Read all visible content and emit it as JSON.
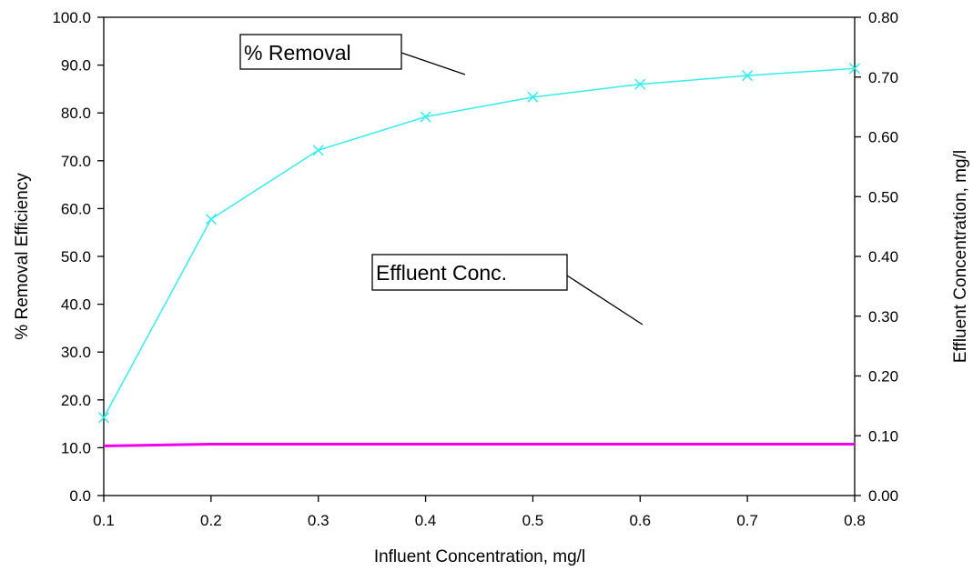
{
  "chart_data": {
    "type": "line",
    "title": "",
    "xlabel": "Influent Concentration, mg/l",
    "ylabel": "% Removal Efficiency",
    "y2label": "Effluent Concentration, mg/l",
    "x": [
      0.1,
      0.2,
      0.3,
      0.4,
      0.5,
      0.6,
      0.7,
      0.8
    ],
    "x_ticks": [
      "0.1",
      "0.2",
      "0.3",
      "0.4",
      "0.5",
      "0.6",
      "0.7",
      "0.8"
    ],
    "xlim": [
      0.1,
      0.8
    ],
    "ylim": [
      0,
      100
    ],
    "y_ticks": [
      "0.0",
      "10.0",
      "20.0",
      "30.0",
      "40.0",
      "50.0",
      "60.0",
      "70.0",
      "80.0",
      "90.0",
      "100.0"
    ],
    "y2lim": [
      0,
      0.8
    ],
    "y2_ticks": [
      "0.00",
      "0.10",
      "0.20",
      "0.30",
      "0.40",
      "0.50",
      "0.60",
      "0.70",
      "0.80"
    ],
    "grid": false,
    "series": [
      {
        "name": "% Removal",
        "axis": "left",
        "color": "#33eeee",
        "marker": "x",
        "values": [
          16.3,
          57.8,
          72.2,
          79.2,
          83.3,
          86.0,
          87.8,
          89.3
        ]
      },
      {
        "name": "Effluent Conc.",
        "axis": "right",
        "color": "#ee00ee",
        "marker": "none",
        "values": [
          0.083,
          0.086,
          0.086,
          0.086,
          0.086,
          0.086,
          0.086,
          0.086
        ]
      }
    ],
    "annotations": [
      {
        "label": "% Removal",
        "series": "% Removal"
      },
      {
        "label": "Effluent Conc.",
        "series": "Effluent Conc."
      }
    ]
  }
}
